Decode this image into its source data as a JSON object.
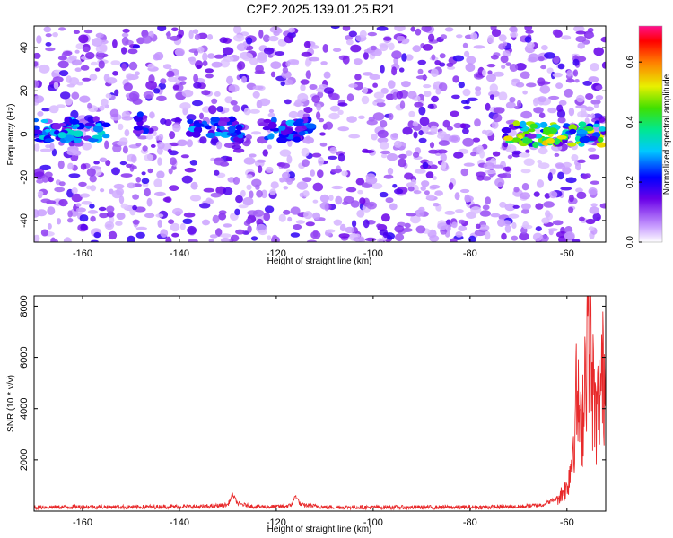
{
  "title": "C2E2.2025.139.01.25.R21",
  "chart_data": [
    {
      "type": "heatmap",
      "xlabel": "Height of straight line (km)",
      "ylabel": "Frequency (Hz)",
      "xlim": [
        -170,
        -52
      ],
      "ylim": [
        -50,
        50
      ],
      "xticks": [
        -160,
        -140,
        -120,
        -100,
        -80,
        -60
      ],
      "yticks": [
        -40,
        -20,
        0,
        20,
        40
      ],
      "colorbar": {
        "label": "Normalized spectral amplitude",
        "range": [
          0.0,
          0.72
        ],
        "ticks": [
          0.0,
          0.2,
          0.4,
          0.6
        ],
        "tick_labels": [
          "0.0",
          "0.2",
          "0.4",
          "0.6"
        ]
      },
      "bands": [
        {
          "x_range": [
            -170,
            -155
          ],
          "freq": 2,
          "amplitude": 0.35
        },
        {
          "x_range": [
            -149,
            -147
          ],
          "freq": 5,
          "amplitude": 0.25
        },
        {
          "x_range": [
            -138,
            -127
          ],
          "freq": 2,
          "amplitude": 0.3
        },
        {
          "x_range": [
            -122,
            -112
          ],
          "freq": 2,
          "amplitude": 0.3
        },
        {
          "x_range": [
            -73,
            -52
          ],
          "freq": 0,
          "amplitude": 0.55
        }
      ],
      "grid": false
    },
    {
      "type": "line",
      "xlabel": "Height of straight line (km)",
      "ylabel": "SNR (10 * v/v)",
      "xlim": [
        -170,
        -52
      ],
      "ylim": [
        0,
        8400
      ],
      "xticks": [
        -160,
        -140,
        -120,
        -100,
        -80,
        -60
      ],
      "yticks": [
        2000,
        4000,
        6000,
        8000
      ],
      "series": [
        {
          "color": "#e8292a",
          "x": [
            -170,
            -160,
            -150,
            -140,
            -135,
            -130,
            -129,
            -128,
            -125,
            -120,
            -117,
            -116,
            -115,
            -110,
            -100,
            -90,
            -80,
            -70,
            -65,
            -62,
            -60,
            -59,
            -58,
            -57,
            -56,
            -55.5,
            -55,
            -54,
            -53,
            -52
          ],
          "y": [
            150,
            170,
            160,
            180,
            170,
            250,
            650,
            300,
            180,
            170,
            220,
            600,
            250,
            160,
            150,
            150,
            150,
            170,
            250,
            500,
            900,
            2000,
            4500,
            3000,
            6500,
            8300,
            5500,
            3500,
            4800,
            5700
          ]
        }
      ],
      "grid": false
    }
  ]
}
